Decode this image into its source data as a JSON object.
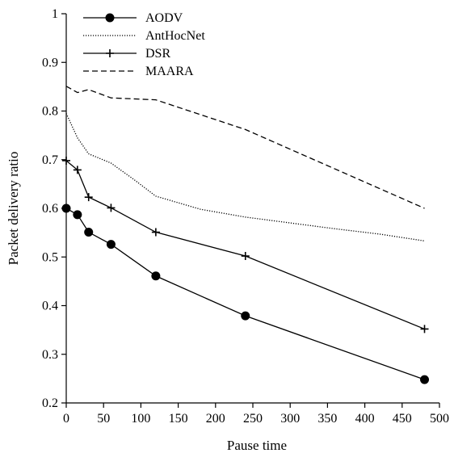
{
  "chart_data": {
    "type": "line",
    "title": "",
    "xlabel": "Pause time",
    "ylabel": "Packet delivery ratio",
    "xlim": [
      0,
      500
    ],
    "ylim": [
      0.2,
      1
    ],
    "xticks": [
      0,
      50,
      100,
      150,
      200,
      250,
      300,
      350,
      400,
      450,
      500
    ],
    "yticks": [
      0.2,
      0.3,
      0.4,
      0.5,
      0.6,
      0.7,
      0.8,
      0.9,
      1
    ],
    "ytick_labels": [
      "0.2",
      "0.3",
      "0.4",
      "0.5",
      "0.6",
      "0.7",
      "0.8",
      "0.9",
      "1"
    ],
    "grid": false,
    "legend_position": "top-left",
    "series": [
      {
        "name": "AODV",
        "style": "solid",
        "marker": "circle",
        "x": [
          0,
          15,
          30,
          60,
          120,
          240,
          480
        ],
        "y": [
          0.6,
          0.587,
          0.551,
          0.526,
          0.461,
          0.379,
          0.248
        ]
      },
      {
        "name": "AntHocNet",
        "style": "dotted",
        "marker": "none",
        "x": [
          0,
          15,
          30,
          60,
          90,
          120,
          180,
          240,
          300,
          360,
          420,
          480
        ],
        "y": [
          0.795,
          0.745,
          0.712,
          0.693,
          0.66,
          0.625,
          0.598,
          0.582,
          0.57,
          0.558,
          0.547,
          0.533
        ]
      },
      {
        "name": "DSR",
        "style": "solid",
        "marker": "plus",
        "x": [
          0,
          15,
          30,
          60,
          120,
          240,
          480
        ],
        "y": [
          0.698,
          0.679,
          0.623,
          0.601,
          0.551,
          0.502,
          0.352
        ]
      },
      {
        "name": "MAARA",
        "style": "dashed",
        "marker": "none",
        "x": [
          0,
          15,
          30,
          60,
          120,
          240,
          480
        ],
        "y": [
          0.851,
          0.838,
          0.844,
          0.827,
          0.823,
          0.762,
          0.6
        ]
      }
    ]
  }
}
